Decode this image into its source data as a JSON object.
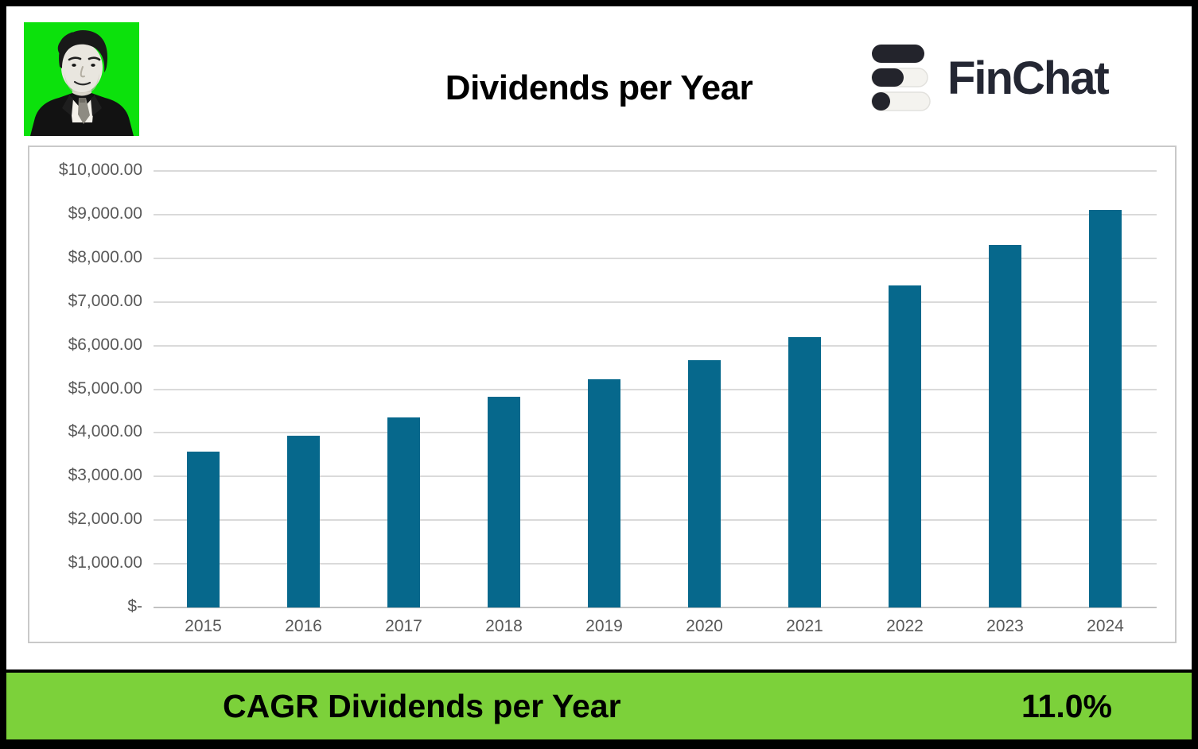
{
  "page": {
    "title": "Dividends per Year"
  },
  "brand": {
    "name": "FinChat",
    "color": "#242733",
    "icon_dark": "#23242c",
    "icon_light": "#f4f3ef"
  },
  "avatar": {
    "bg_color": "#0ce10c",
    "description": "black-and-white portrait of a man in a suit on green background"
  },
  "chart_data": {
    "type": "bar",
    "title": "Dividends per Year",
    "categories": [
      "2015",
      "2016",
      "2017",
      "2018",
      "2019",
      "2020",
      "2021",
      "2022",
      "2023",
      "2024"
    ],
    "values": [
      3570,
      3940,
      4350,
      4830,
      5230,
      5670,
      6190,
      7370,
      8310,
      9100
    ],
    "xlabel": "",
    "ylabel": "",
    "ylim": [
      0,
      10000
    ],
    "y_tick_step": 1000,
    "y_tick_labels": [
      "$-",
      "$1,000.00",
      "$2,000.00",
      "$3,000.00",
      "$4,000.00",
      "$5,000.00",
      "$6,000.00",
      "$7,000.00",
      "$8,000.00",
      "$9,000.00",
      "$10,000.00"
    ],
    "grid": true,
    "legend": false,
    "bar_color": "#06688c",
    "gridline_color": "#dadada",
    "baseline_color": "#c2c2c2",
    "tick_label_color": "#595959"
  },
  "footer": {
    "label": "CAGR Dividends per Year",
    "value": "11.0%",
    "bg_color": "#7cd13a"
  }
}
